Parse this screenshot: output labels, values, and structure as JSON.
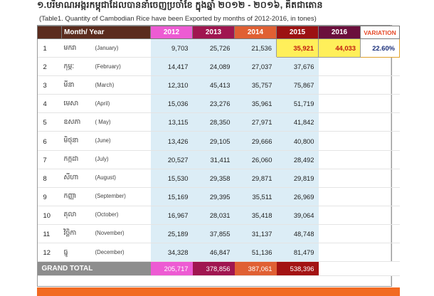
{
  "title": "១.បរិមាណអង្ករកម្ពុជាដែលបាននាំចេញប្រចាំខែ ក្នុងឆ្នាំ ២០១២ - ២០១៦, គិតជាតោន",
  "subtitle": "(Table1. Quantity of Cambodian Rice have been Exported by months of 2012-2016, in tones)",
  "headers": {
    "month_year": "Month/ Year",
    "y2012": "2012",
    "y2013": "2013",
    "y2014": "2014",
    "y2015": "2015",
    "y2016": "2016",
    "variation": "VARIATION"
  },
  "rows": [
    {
      "no": "1",
      "kh": "មករា",
      "en": "(January)",
      "y2012": "9,703",
      "y2013": "25,726",
      "y2014": "21,536",
      "y2015": "35,921",
      "y2016": "44,033",
      "variation": "22.60%"
    },
    {
      "no": "2",
      "kh": "កុម្ភៈ",
      "en": "(February)",
      "y2012": "14,417",
      "y2013": "24,089",
      "y2014": "27,037",
      "y2015": "37,676",
      "y2016": "",
      "variation": ""
    },
    {
      "no": "3",
      "kh": "មីនា",
      "en": "(March)",
      "y2012": "12,310",
      "y2013": "45,413",
      "y2014": "35,757",
      "y2015": "75,867",
      "y2016": "",
      "variation": ""
    },
    {
      "no": "4",
      "kh": "មេសា",
      "en": "(April)",
      "y2012": "15,036",
      "y2013": "23,276",
      "y2014": "35,961",
      "y2015": "51,719",
      "y2016": "",
      "variation": ""
    },
    {
      "no": "5",
      "kh": "ឧសភា",
      "en": "( May)",
      "y2012": "13,115",
      "y2013": "28,350",
      "y2014": "27,971",
      "y2015": "41,842",
      "y2016": "",
      "variation": ""
    },
    {
      "no": "6",
      "kh": "មិថុនា",
      "en": "(June)",
      "y2012": "13,426",
      "y2013": "29,105",
      "y2014": "29,666",
      "y2015": "40,800",
      "y2016": "",
      "variation": ""
    },
    {
      "no": "7",
      "kh": "កក្កដា",
      "en": "(July)",
      "y2012": "20,527",
      "y2013": "31,411",
      "y2014": "26,060",
      "y2015": "28,492",
      "y2016": "",
      "variation": ""
    },
    {
      "no": "8",
      "kh": "សីហា",
      "en": "(August)",
      "y2012": "15,530",
      "y2013": "29,358",
      "y2014": "29,871",
      "y2015": "29,819",
      "y2016": "",
      "variation": ""
    },
    {
      "no": "9",
      "kh": "កញ្ញា",
      "en": "(September)",
      "y2012": "15,169",
      "y2013": "29,395",
      "y2014": "35,511",
      "y2015": "26,969",
      "y2016": "",
      "variation": ""
    },
    {
      "no": "10",
      "kh": "តុលា",
      "en": "(October)",
      "y2012": "16,967",
      "y2013": "28,031",
      "y2014": "35,418",
      "y2015": "39,064",
      "y2016": "",
      "variation": ""
    },
    {
      "no": "11",
      "kh": "វិច្ឆិកា",
      "en": "(November)",
      "y2012": "25,189",
      "y2013": "37,855",
      "y2014": "31,137",
      "y2015": "48,748",
      "y2016": "",
      "variation": ""
    },
    {
      "no": "12",
      "kh": "ធ្នូ",
      "en": "(December)",
      "y2012": "34,328",
      "y2013": "46,847",
      "y2014": "51,136",
      "y2015": "81,479",
      "y2016": "",
      "variation": ""
    }
  ],
  "total": {
    "label": "GRAND TOTAL",
    "y2012": "205,717",
    "y2013": "378,856",
    "y2014": "387,061",
    "y2015": "538,396"
  },
  "colors": {
    "accent_bar": "#f26a21",
    "highlight_yellow": "#ffef5a",
    "row_blue": "#dcedf6"
  }
}
